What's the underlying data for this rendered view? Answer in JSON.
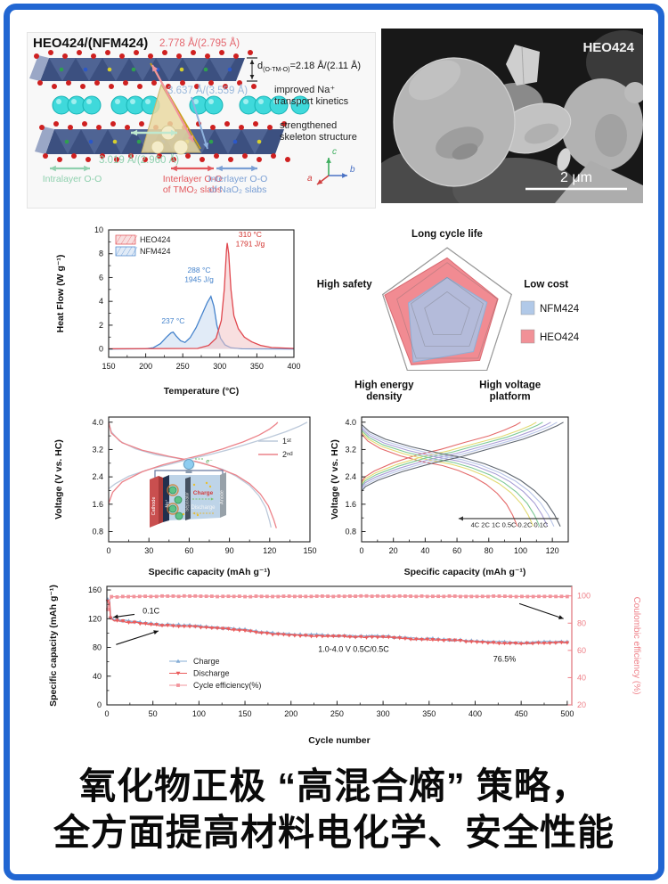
{
  "frame": {
    "border_color": "#2166d2"
  },
  "structure_panel": {
    "title": "HEO424/(NFM424)",
    "labels": {
      "interlayer_tmo_distance": "2.778 Å/(2.795 Å)",
      "d_prefix": "d",
      "d_sub": "(O-TM-O)",
      "d_value": "=2.18 Å/(2.11 Å)",
      "interlayer_nao_distance": "3.637 Å/(3.559 Å)",
      "improved_line1": "improved Na⁺",
      "improved_line2": "transport kinetics",
      "strengthened_line1": "strengthened",
      "strengthened_line2": "skeleton structure",
      "intralayer_distance": "3.019 Å/(2.960 Å)",
      "axis_a": "a",
      "axis_b": "b",
      "axis_c": "c"
    },
    "legend_items": [
      {
        "line1": "Intralayer O-O",
        "line2": ""
      },
      {
        "line1": "Interlayer O-O",
        "line2": "of TMO₂ slabs"
      },
      {
        "line1": "Interlayer O-O",
        "line2": "of NaO₂ slabs"
      }
    ],
    "colors": {
      "intralayer": "#8fd0ae",
      "tmo": "#e2575c",
      "nao": "#7a9fd4",
      "slab": "#3c5080",
      "na": "#3fd9db",
      "oxygen": "#cf2020"
    }
  },
  "sem_panel": {
    "label": "HEO424",
    "scale_bar": "2 μm"
  },
  "headline": {
    "line1": "氧化物正极 “高混合熵” 策略，",
    "line2": "全方面提高材料电化学、安全性能"
  },
  "chart_data": [
    {
      "id": "dsc",
      "type": "line",
      "xlabel": "Temperature (°C)",
      "ylabel": "Heat Flow (W g⁻¹)",
      "xlim": [
        150,
        400
      ],
      "ylim": [
        -0.7,
        10
      ],
      "xticks": [
        150,
        200,
        250,
        300,
        350,
        400
      ],
      "yticks": [
        0,
        2,
        4,
        6,
        8,
        10
      ],
      "xminor": 25,
      "yminor": 1,
      "ydec": 0,
      "series": [
        {
          "name": "NFM424",
          "color": "#4583cc",
          "fill": "#c9daf0",
          "points": [
            [
              150,
              0
            ],
            [
              200,
              0.02
            ],
            [
              210,
              0.1
            ],
            [
              220,
              0.45
            ],
            [
              228,
              1.0
            ],
            [
              234,
              1.35
            ],
            [
              237,
              1.42
            ],
            [
              241,
              1.1
            ],
            [
              247,
              0.7
            ],
            [
              253,
              0.55
            ],
            [
              260,
              0.95
            ],
            [
              268,
              1.8
            ],
            [
              276,
              2.9
            ],
            [
              283,
              3.9
            ],
            [
              288,
              4.42
            ],
            [
              292,
              3.6
            ],
            [
              296,
              2.0
            ],
            [
              301,
              0.9
            ],
            [
              307,
              0.35
            ],
            [
              315,
              0.1
            ],
            [
              330,
              0.02
            ],
            [
              400,
              0
            ]
          ]
        },
        {
          "name": "HEO424",
          "color": "#e0474e",
          "fill": "#f3c4c6",
          "points": [
            [
              150,
              0.02
            ],
            [
              270,
              0.05
            ],
            [
              285,
              0.3
            ],
            [
              295,
              0.9
            ],
            [
              302,
              2.4
            ],
            [
              306,
              5.0
            ],
            [
              309,
              8.3
            ],
            [
              310,
              8.9
            ],
            [
              312,
              8.0
            ],
            [
              315,
              5.0
            ],
            [
              319,
              2.8
            ],
            [
              325,
              1.7
            ],
            [
              333,
              1.0
            ],
            [
              343,
              0.6
            ],
            [
              355,
              0.3
            ],
            [
              370,
              0.12
            ],
            [
              400,
              0.05
            ]
          ]
        }
      ],
      "annotations": [
        {
          "text": "237 °C",
          "x": 237,
          "y": 2.15,
          "color": "#4583cc",
          "size": 8.5
        },
        {
          "text": "288 °C\n1945 J/g",
          "x": 272,
          "y": 6.4,
          "color": "#4583cc",
          "size": 8.5
        },
        {
          "text": "310 °C\n1791 J/g",
          "x": 341,
          "y": 9.4,
          "color": "#d2322e",
          "size": 8.5
        }
      ],
      "legend": {
        "items": [
          {
            "label": "HEO424",
            "fill": "#f3c4c6",
            "color": "#e0474e"
          },
          {
            "label": "NFM424",
            "fill": "#c9daf0",
            "color": "#4583cc"
          }
        ]
      }
    },
    {
      "id": "radar",
      "type": "radar",
      "axes": [
        {
          "label": "Long cycle life"
        },
        {
          "label": "Low cost"
        },
        {
          "label": "High voltage\nplatform"
        },
        {
          "label": "High energy\ndensity"
        },
        {
          "label": "High safety"
        }
      ],
      "grid_levels": [
        0.35,
        0.56,
        0.78
      ],
      "series": [
        {
          "name": "HEO424",
          "color": "#f0858c",
          "stroke": "#d96a72",
          "values": [
            0.85,
            0.79,
            0.82,
            0.9,
            0.97
          ]
        },
        {
          "name": "NFM424",
          "color": "#a9c3e6",
          "stroke": "#8fafd6",
          "values": [
            0.56,
            0.62,
            0.66,
            0.85,
            0.6
          ]
        }
      ],
      "legend": [
        {
          "label": "NFM424",
          "color": "#a9c3e6"
        },
        {
          "label": "HEO424",
          "color": "#f0858c"
        }
      ]
    },
    {
      "id": "volt1",
      "type": "line",
      "xlabel": "Specific capacity (mAh g⁻¹)",
      "ylabel": "Voltage (V vs. HC)",
      "xlim": [
        0,
        150
      ],
      "ylim": [
        0.5,
        4.15
      ],
      "xticks": [
        0,
        30,
        60,
        90,
        120,
        150
      ],
      "yticks": [
        0.8,
        1.6,
        2.4,
        3.2,
        4.0
      ],
      "xminor": 15,
      "yminor": 0.4,
      "ydec": 1,
      "series": [
        {
          "name": "1st charge",
          "color": "#bcc9da",
          "points": [
            [
              0,
              2.05
            ],
            [
              5,
              2.2
            ],
            [
              15,
              2.42
            ],
            [
              30,
              2.62
            ],
            [
              45,
              2.76
            ],
            [
              60,
              2.92
            ],
            [
              75,
              3.05
            ],
            [
              90,
              3.2
            ],
            [
              105,
              3.38
            ],
            [
              120,
              3.56
            ],
            [
              132,
              3.72
            ],
            [
              142,
              3.88
            ],
            [
              147,
              3.98
            ],
            [
              148,
              4.0
            ]
          ]
        },
        {
          "name": "1st discharge",
          "color": "#bcc9da",
          "points": [
            [
              0,
              4.0
            ],
            [
              2,
              3.72
            ],
            [
              8,
              3.45
            ],
            [
              20,
              3.22
            ],
            [
              35,
              3.05
            ],
            [
              55,
              2.92
            ],
            [
              70,
              2.8
            ],
            [
              85,
              2.62
            ],
            [
              95,
              2.42
            ],
            [
              105,
              2.15
            ],
            [
              112,
              1.85
            ],
            [
              117,
              1.5
            ],
            [
              120,
              1.1
            ],
            [
              121,
              0.92
            ]
          ]
        },
        {
          "name": "2nd charge",
          "color": "#ec8289",
          "points": [
            [
              0,
              1.62
            ],
            [
              3,
              1.95
            ],
            [
              10,
              2.25
            ],
            [
              25,
              2.55
            ],
            [
              40,
              2.75
            ],
            [
              55,
              2.9
            ],
            [
              70,
              3.05
            ],
            [
              85,
              3.22
            ],
            [
              100,
              3.42
            ],
            [
              112,
              3.62
            ],
            [
              120,
              3.8
            ],
            [
              125,
              3.95
            ],
            [
              126,
              4.0
            ]
          ]
        },
        {
          "name": "2nd discharge",
          "color": "#ec8289",
          "points": [
            [
              0,
              4.0
            ],
            [
              2,
              3.68
            ],
            [
              10,
              3.4
            ],
            [
              25,
              3.18
            ],
            [
              45,
              3.0
            ],
            [
              65,
              2.85
            ],
            [
              80,
              2.68
            ],
            [
              95,
              2.45
            ],
            [
              105,
              2.2
            ],
            [
              113,
              1.9
            ],
            [
              119,
              1.55
            ],
            [
              123,
              1.15
            ],
            [
              125,
              0.9
            ]
          ]
        }
      ],
      "legend": {
        "items": [
          {
            "label": "1ˢᵗ",
            "color": "#bcc9da"
          },
          {
            "label": "2ⁿᵈ",
            "color": "#ec8289"
          }
        ]
      },
      "inset_labels": {
        "cathode": "Cathode",
        "separator": "Separator",
        "anode": "Anode",
        "charge": "Charge",
        "discharge": "Discharge",
        "na": "Na⁺",
        "electron": "e⁻"
      }
    },
    {
      "id": "volt2",
      "type": "line",
      "xlabel": "Specific capacity (mAh g⁻¹)",
      "ylabel": "Voltage (V vs. HC)",
      "xlim": [
        0,
        130
      ],
      "ylim": [
        0.5,
        4.15
      ],
      "xticks": [
        0,
        20,
        40,
        60,
        80,
        100,
        120
      ],
      "yticks": [
        0.8,
        1.6,
        2.4,
        3.2,
        4.0
      ],
      "xminor": 10,
      "yminor": 0.4,
      "ydec": 1,
      "rates": [
        {
          "label": "4C",
          "color": "#e46a6a",
          "capacity": 98
        },
        {
          "label": "2C",
          "color": "#e2da72",
          "capacity": 108
        },
        {
          "label": "1C",
          "color": "#7ec996",
          "capacity": 112
        },
        {
          "label": "0.5C",
          "color": "#a89ed6",
          "capacity": 117
        },
        {
          "label": "0.2C",
          "color": "#b9c5e8",
          "capacity": 121
        },
        {
          "label": "0.1C",
          "color": "#5f6670",
          "capacity": 125
        }
      ],
      "rate_label": "4C 2C 1C 0.5C 0.2C 0.1C",
      "discharge_shape": [
        [
          0,
          3.93
        ],
        [
          0.04,
          3.72
        ],
        [
          0.12,
          3.5
        ],
        [
          0.25,
          3.28
        ],
        [
          0.4,
          3.08
        ],
        [
          0.52,
          2.95
        ],
        [
          0.62,
          2.78
        ],
        [
          0.72,
          2.55
        ],
        [
          0.8,
          2.3
        ],
        [
          0.87,
          2.0
        ],
        [
          0.93,
          1.65
        ],
        [
          0.97,
          1.3
        ],
        [
          1,
          0.95
        ]
      ],
      "charge_shape": [
        [
          0,
          1.98
        ],
        [
          0.02,
          2.12
        ],
        [
          0.08,
          2.3
        ],
        [
          0.2,
          2.55
        ],
        [
          0.35,
          2.8
        ],
        [
          0.5,
          3.0
        ],
        [
          0.65,
          3.25
        ],
        [
          0.8,
          3.5
        ],
        [
          0.9,
          3.72
        ],
        [
          0.97,
          3.9
        ],
        [
          1,
          4.0
        ]
      ]
    },
    {
      "id": "cycle",
      "type": "line",
      "xlabel": "Cycle number",
      "ylabel": "Specific capacity (mAh g⁻¹)",
      "xlim": [
        0,
        505
      ],
      "ylim": [
        0,
        165
      ],
      "xticks": [
        0,
        50,
        100,
        150,
        200,
        250,
        300,
        350,
        400,
        450,
        500
      ],
      "yticks": [
        0,
        40,
        80,
        120,
        160
      ],
      "xminor": 25,
      "yminor": 20,
      "ydec": 0,
      "y2": {
        "label": "Coulombic efficiency (%)",
        "color": "#ee7f87",
        "lim": [
          20,
          107
        ],
        "ticks": [
          20,
          40,
          60,
          80,
          100
        ]
      },
      "series": [
        {
          "name": "Charge",
          "color": "#85add6",
          "marker": "tri",
          "axis": "y",
          "jitter": 1.5,
          "anchors": [
            [
              1,
              147
            ],
            [
              3,
              145
            ],
            [
              4,
              123
            ],
            [
              8,
              119
            ],
            [
              30,
              116
            ],
            [
              60,
              112
            ],
            [
              90,
              111
            ],
            [
              120,
              108
            ],
            [
              150,
              105
            ],
            [
              180,
              100
            ],
            [
              210,
              98
            ],
            [
              240,
              97
            ],
            [
              270,
              96
            ],
            [
              300,
              96
            ],
            [
              330,
              93
            ],
            [
              360,
              92
            ],
            [
              390,
              90
            ],
            [
              420,
              88
            ],
            [
              450,
              87
            ],
            [
              475,
              88
            ],
            [
              500,
              88
            ]
          ]
        },
        {
          "name": "Discharge",
          "color": "#ea5c5c",
          "marker": "tridown",
          "axis": "y",
          "jitter": 1.5,
          "anchors": [
            [
              1,
              145
            ],
            [
              3,
              143
            ],
            [
              4,
              121
            ],
            [
              8,
              117.5
            ],
            [
              30,
              114.5
            ],
            [
              60,
              110.5
            ],
            [
              90,
              109.5
            ],
            [
              120,
              106.5
            ],
            [
              150,
              103.5
            ],
            [
              180,
              98.5
            ],
            [
              210,
              96.5
            ],
            [
              240,
              95.5
            ],
            [
              270,
              94.5
            ],
            [
              300,
              94.5
            ],
            [
              330,
              91.5
            ],
            [
              360,
              90.5
            ],
            [
              390,
              88.5
            ],
            [
              420,
              86.5
            ],
            [
              450,
              85.5
            ],
            [
              475,
              86.5
            ],
            [
              500,
              86.5
            ]
          ]
        },
        {
          "name": "Cycle efficiency(%)",
          "color": "#f2949c",
          "marker": "sq",
          "axis": "y2",
          "jitter": 0.4,
          "anchors": [
            [
              1,
              90
            ],
            [
              2,
              96
            ],
            [
              5,
              99.3
            ],
            [
              60,
              99.8
            ],
            [
              150,
              99.6
            ],
            [
              300,
              99.8
            ],
            [
              420,
              99.7
            ],
            [
              500,
              99.5
            ]
          ]
        }
      ],
      "annotations": [
        {
          "text": "0.1C",
          "x": 48,
          "y": 127,
          "color": "#111",
          "size": 9
        },
        {
          "text": "1.0-4.0 V 0.5C/0.5C",
          "x": 268,
          "y": 74,
          "color": "#111",
          "size": 9
        },
        {
          "text": "76.5%",
          "x": 432,
          "y": 60,
          "color": "#111",
          "size": 9
        }
      ],
      "arrows": [
        {
          "from": [
            30,
            126
          ],
          "to": [
            7,
            122
          ]
        },
        {
          "from": [
            10,
            84
          ],
          "to": [
            56,
            103
          ]
        },
        {
          "from": [
            448,
            141
          ],
          "to": [
            496,
            120
          ]
        }
      ],
      "legend": {
        "items": [
          {
            "label": "Charge",
            "color": "#85add6",
            "marker": "tri"
          },
          {
            "label": "Discharge",
            "color": "#ea5c5c",
            "marker": "tridown"
          },
          {
            "label": "Cycle efficiency(%)",
            "color": "#f2949c",
            "marker": "sq"
          }
        ]
      }
    }
  ]
}
